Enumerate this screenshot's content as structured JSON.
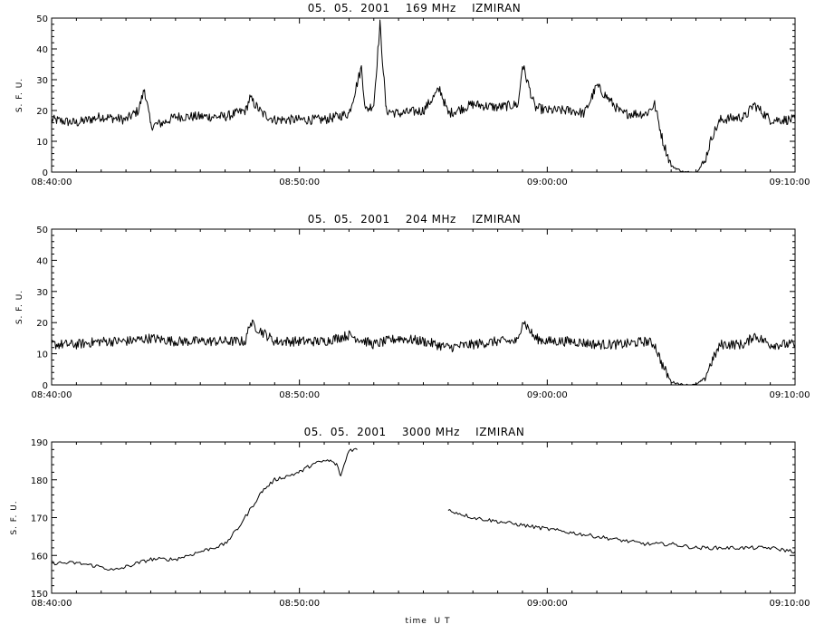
{
  "chart_data": [
    {
      "type": "line",
      "title": "05.  05.  2001    169 MHz    IZMIRAN",
      "ylabel": "S. F. U.",
      "xlabel": "",
      "xlim": [
        "08:40:00",
        "09:10:00"
      ],
      "ylim": [
        0,
        50
      ],
      "y_ticks": [
        0,
        10,
        20,
        30,
        40,
        50
      ],
      "x_ticks": [
        "08:40:00",
        "08:50:00",
        "09:00:00",
        "09:10:00"
      ],
      "grid": false,
      "series": [
        {
          "x": [
            "08:40:00",
            "08:41:00",
            "08:42:00",
            "08:43:00",
            "08:43:30",
            "08:43:45",
            "08:44:00",
            "08:44:30",
            "08:45:00",
            "08:46:00",
            "08:47:00",
            "08:47:50",
            "08:48:00",
            "08:48:30",
            "08:49:00",
            "08:50:00",
            "08:51:00",
            "08:52:00",
            "08:52:30",
            "08:52:40",
            "08:53:00",
            "08:53:15",
            "08:53:30",
            "08:54:00",
            "08:55:00",
            "08:55:40",
            "08:56:00",
            "08:57:00",
            "08:58:00",
            "08:58:50",
            "08:59:00",
            "08:59:30",
            "09:00:00",
            "09:01:00",
            "09:01:30",
            "09:02:00",
            "09:03:00",
            "09:04:00",
            "09:04:20",
            "09:04:40",
            "09:05:00",
            "09:05:30",
            "09:06:00",
            "09:06:20",
            "09:06:40",
            "09:07:00",
            "09:08:00",
            "09:08:20",
            "09:09:00",
            "09:10:00"
          ],
          "values": [
            17,
            16,
            18,
            17,
            20,
            27,
            15,
            16,
            18,
            18,
            18,
            20,
            24,
            19,
            17,
            17,
            17,
            19,
            34,
            20,
            22,
            48,
            20,
            19,
            20,
            27,
            19,
            22,
            21,
            22,
            35,
            21,
            20,
            20,
            19,
            28,
            19,
            19,
            22,
            10,
            2,
            0,
            0,
            3,
            12,
            17,
            18,
            22,
            17,
            17
          ]
        }
      ]
    },
    {
      "type": "line",
      "title": "05.  05.  2001    204 MHz    IZMIRAN",
      "ylabel": "S. F. U.",
      "xlabel": "",
      "xlim": [
        "08:40:00",
        "09:10:00"
      ],
      "ylim": [
        0,
        50
      ],
      "y_ticks": [
        0,
        10,
        20,
        30,
        40,
        50
      ],
      "x_ticks": [
        "08:40:00",
        "08:50:00",
        "09:00:00",
        "09:10:00"
      ],
      "grid": false,
      "series": [
        {
          "x": [
            "08:40:00",
            "08:41:00",
            "08:42:00",
            "08:43:00",
            "08:44:00",
            "08:45:00",
            "08:46:00",
            "08:47:00",
            "08:47:50",
            "08:48:00",
            "08:49:00",
            "08:50:00",
            "08:51:00",
            "08:52:00",
            "08:53:00",
            "08:54:00",
            "08:55:00",
            "08:56:00",
            "08:57:00",
            "08:58:00",
            "08:58:50",
            "08:59:00",
            "08:59:30",
            "09:00:00",
            "09:01:00",
            "09:02:00",
            "09:03:00",
            "09:04:00",
            "09:04:20",
            "09:04:40",
            "09:05:00",
            "09:05:30",
            "09:06:00",
            "09:06:20",
            "09:06:40",
            "09:07:00",
            "09:08:00",
            "09:08:20",
            "09:09:00",
            "09:10:00"
          ],
          "values": [
            13,
            13,
            14,
            14,
            15,
            14,
            14,
            14,
            14,
            20,
            14,
            14,
            14,
            16,
            13,
            15,
            14,
            12,
            13,
            14,
            14,
            21,
            15,
            14,
            14,
            13,
            13,
            14,
            13,
            6,
            1,
            0,
            0,
            2,
            8,
            13,
            13,
            16,
            13,
            13
          ]
        }
      ]
    },
    {
      "type": "line",
      "title": "05.  05.  2001    3000 MHz    IZMIRAN",
      "ylabel": "S. F. U.",
      "xlabel": "time  U T",
      "xlim": [
        "08:40:00",
        "09:10:00"
      ],
      "ylim": [
        150,
        190
      ],
      "y_ticks": [
        150,
        160,
        170,
        180,
        190
      ],
      "x_ticks": [
        "08:40:00",
        "08:50:00",
        "09:00:00",
        "09:10:00"
      ],
      "grid": false,
      "series": [
        {
          "x": [
            "08:40:00",
            "08:41:00",
            "08:42:00",
            "08:42:30",
            "08:43:00",
            "08:44:00",
            "08:45:00",
            "08:46:00",
            "08:47:00",
            "08:47:30",
            "08:48:00",
            "08:48:30",
            "08:49:00",
            "08:49:30",
            "08:50:00",
            "08:50:30",
            "08:51:00",
            "08:51:15",
            "08:51:30",
            "08:51:40",
            "08:52:00",
            "08:52:20"
          ],
          "values": [
            158,
            158,
            157,
            156,
            157,
            159,
            159,
            161,
            163,
            167,
            172,
            177,
            180,
            181,
            182,
            184,
            185,
            185,
            184,
            181,
            188,
            188
          ]
        },
        {
          "x": [
            "08:56:00",
            "08:57:00",
            "08:58:00",
            "08:59:00",
            "09:00:00",
            "09:01:00",
            "09:02:00",
            "09:03:00",
            "09:04:00",
            "09:05:00",
            "09:06:00",
            "09:07:00",
            "09:08:00",
            "09:09:00",
            "09:10:00"
          ],
          "values": [
            172,
            170,
            169,
            168,
            167,
            166,
            165,
            164,
            163,
            163,
            162,
            162,
            162,
            162,
            161
          ]
        }
      ]
    }
  ]
}
